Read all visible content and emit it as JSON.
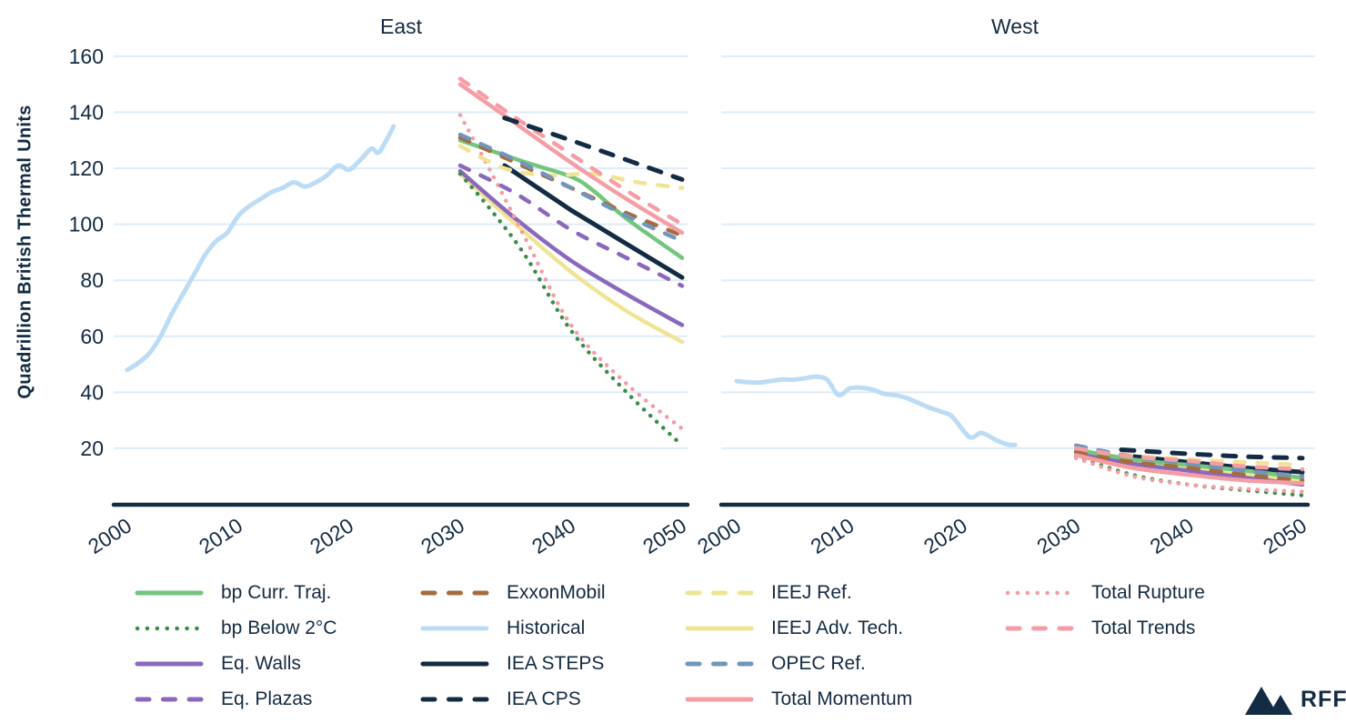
{
  "branding": {
    "logo_text": "RFF",
    "logo_color": "#132B43"
  },
  "chart_data": {
    "type": "line",
    "ylabel": "Quadrillion British Thermal Units",
    "xlabel": "",
    "ylim": [
      0,
      165
    ],
    "yticks": [
      20,
      40,
      60,
      80,
      100,
      120,
      140,
      160
    ],
    "xticks": [
      2000,
      2010,
      2020,
      2030,
      2040,
      2050
    ],
    "grid": "horizontal",
    "grid_color": "#DEEBF7",
    "axis_color": "#132B43",
    "legend_position": "bottom",
    "series": [
      {
        "name": "bp Curr. Traj.",
        "color": "#74C57E",
        "style": "solid"
      },
      {
        "name": "bp Below 2°C",
        "color": "#3B8C49",
        "style": "dotted"
      },
      {
        "name": "Eq. Walls",
        "color": "#8A68BD",
        "style": "solid"
      },
      {
        "name": "Eq. Plazas",
        "color": "#8A68BD",
        "style": "dashed"
      },
      {
        "name": "ExxonMobil",
        "color": "#A66B3F",
        "style": "dashed"
      },
      {
        "name": "Historical",
        "color": "#BCDCF5",
        "style": "solid"
      },
      {
        "name": "IEA STEPS",
        "color": "#132B43",
        "style": "solid"
      },
      {
        "name": "IEA CPS",
        "color": "#132B43",
        "style": "dashed"
      },
      {
        "name": "IEEJ Ref.",
        "color": "#F0E494",
        "style": "dashed"
      },
      {
        "name": "IEEJ Adv. Tech.",
        "color": "#F0E494",
        "style": "solid"
      },
      {
        "name": "OPEC Ref.",
        "color": "#7195BC",
        "style": "dashed"
      },
      {
        "name": "Total Momentum",
        "color": "#F59DA5",
        "style": "solid"
      },
      {
        "name": "Total Rupture",
        "color": "#F59DA5",
        "style": "dotted"
      },
      {
        "name": "Total Trends",
        "color": "#F59DA5",
        "style": "dashed"
      }
    ],
    "panels": [
      {
        "title": "East",
        "x_domain": [
          2000,
          2050
        ],
        "data": {
          "Historical": [
            [
              2000,
              48
            ],
            [
              2001,
              50.5
            ],
            [
              2002,
              54
            ],
            [
              2003,
              60
            ],
            [
              2004,
              68
            ],
            [
              2005,
              75
            ],
            [
              2006,
              82
            ],
            [
              2007,
              89
            ],
            [
              2008,
              94
            ],
            [
              2009,
              97
            ],
            [
              2010,
              103
            ],
            [
              2011,
              106.5
            ],
            [
              2012,
              109
            ],
            [
              2013,
              111.5
            ],
            [
              2014,
              113
            ],
            [
              2015,
              115
            ],
            [
              2016,
              113.5
            ],
            [
              2017,
              115
            ],
            [
              2018,
              117.5
            ],
            [
              2019,
              121
            ],
            [
              2020,
              119.5
            ],
            [
              2021,
              123
            ],
            [
              2022,
              127
            ],
            [
              2022.6,
              125.5
            ],
            [
              2023.2,
              129
            ],
            [
              2024,
              135
            ]
          ],
          "bp Curr. Traj.": [
            [
              2030,
              130
            ],
            [
              2033,
              126
            ],
            [
              2036,
              122
            ],
            [
              2040,
              117
            ],
            [
              2042,
              112
            ],
            [
              2045,
              102
            ],
            [
              2050,
              88
            ]
          ],
          "bp Below 2°C": [
            [
              2030,
              118
            ],
            [
              2033,
              104
            ],
            [
              2036,
              88
            ],
            [
              2040,
              62
            ],
            [
              2045,
              40
            ],
            [
              2050,
              21
            ]
          ],
          "Eq. Walls": [
            [
              2030,
              119
            ],
            [
              2035,
              102
            ],
            [
              2040,
              87
            ],
            [
              2045,
              75
            ],
            [
              2050,
              64
            ]
          ],
          "Eq. Plazas": [
            [
              2030,
              121
            ],
            [
              2035,
              111
            ],
            [
              2040,
              98
            ],
            [
              2045,
              88
            ],
            [
              2050,
              78
            ]
          ],
          "ExxonMobil": [
            [
              2030,
              131
            ],
            [
              2035,
              122
            ],
            [
              2040,
              113
            ],
            [
              2045,
              104
            ],
            [
              2050,
              96
            ]
          ],
          "IEA STEPS": [
            [
              2034,
              121
            ],
            [
              2040,
              105
            ],
            [
              2045,
              93
            ],
            [
              2050,
              81
            ]
          ],
          "IEA CPS": [
            [
              2034,
              138
            ],
            [
              2040,
              130
            ],
            [
              2045,
              123
            ],
            [
              2050,
              116
            ]
          ],
          "IEEJ Ref.": [
            [
              2030,
              128
            ],
            [
              2034,
              120
            ],
            [
              2038,
              117.5
            ],
            [
              2042,
              118
            ],
            [
              2046,
              115
            ],
            [
              2050,
              113
            ]
          ],
          "IEEJ Adv. Tech.": [
            [
              2030,
              118
            ],
            [
              2035,
              100
            ],
            [
              2040,
              83
            ],
            [
              2045,
              69
            ],
            [
              2050,
              58
            ]
          ],
          "OPEC Ref.": [
            [
              2030,
              132
            ],
            [
              2035,
              123
            ],
            [
              2040,
              113
            ],
            [
              2045,
              103
            ],
            [
              2050,
              94
            ]
          ],
          "Total Momentum": [
            [
              2030,
              150
            ],
            [
              2035,
              136
            ],
            [
              2040,
              122
            ],
            [
              2045,
              109
            ],
            [
              2050,
              97
            ]
          ],
          "Total Rupture": [
            [
              2030,
              139
            ],
            [
              2033,
              117
            ],
            [
              2036,
              94
            ],
            [
              2040,
              64
            ],
            [
              2045,
              43
            ],
            [
              2050,
              27
            ]
          ],
          "Total Trends": [
            [
              2030,
              152
            ],
            [
              2035,
              138
            ],
            [
              2040,
              125
            ],
            [
              2045,
              112
            ],
            [
              2050,
              100
            ]
          ]
        }
      },
      {
        "title": "West",
        "x_domain": [
          2000,
          2050
        ],
        "data": {
          "Historical": [
            [
              2000,
              44
            ],
            [
              2001,
              43.6
            ],
            [
              2002,
              43.5
            ],
            [
              2003,
              44
            ],
            [
              2004,
              44.6
            ],
            [
              2005,
              44.5
            ],
            [
              2006,
              45
            ],
            [
              2007,
              45.6
            ],
            [
              2008,
              44.5
            ],
            [
              2009,
              39
            ],
            [
              2010,
              41.4
            ],
            [
              2011,
              41.6
            ],
            [
              2012,
              41
            ],
            [
              2013,
              39.5
            ],
            [
              2014,
              39
            ],
            [
              2015,
              38
            ],
            [
              2016,
              36.3
            ],
            [
              2017,
              34.6
            ],
            [
              2018,
              33.2
            ],
            [
              2019,
              31.5
            ],
            [
              2020,
              26.5
            ],
            [
              2020.7,
              23.8
            ],
            [
              2021.5,
              25.4
            ],
            [
              2022,
              25
            ],
            [
              2023,
              22.8
            ],
            [
              2024,
              21.3
            ],
            [
              2024.6,
              21.2
            ]
          ],
          "bp Curr. Traj.": [
            [
              2030,
              19.5
            ],
            [
              2035,
              16
            ],
            [
              2040,
              14
            ],
            [
              2045,
              12
            ],
            [
              2050,
              9.5
            ]
          ],
          "bp Below 2°C": [
            [
              2030,
              17
            ],
            [
              2035,
              10.5
            ],
            [
              2040,
              7
            ],
            [
              2045,
              5
            ],
            [
              2050,
              3.2
            ]
          ],
          "Eq. Walls": [
            [
              2030,
              18.5
            ],
            [
              2035,
              14.5
            ],
            [
              2040,
              12
            ],
            [
              2045,
              9.5
            ],
            [
              2050,
              7
            ]
          ],
          "Eq. Plazas": [
            [
              2030,
              19
            ],
            [
              2035,
              16
            ],
            [
              2040,
              14
            ],
            [
              2045,
              12.5
            ],
            [
              2050,
              11
            ]
          ],
          "ExxonMobil": [
            [
              2030,
              18.5
            ],
            [
              2035,
              15
            ],
            [
              2040,
              13
            ],
            [
              2045,
              10.5
            ],
            [
              2050,
              8.5
            ]
          ],
          "IEA STEPS": [
            [
              2034,
              17.5
            ],
            [
              2040,
              15
            ],
            [
              2045,
              13
            ],
            [
              2050,
              11.5
            ]
          ],
          "IEA CPS": [
            [
              2034,
              19.5
            ],
            [
              2040,
              18
            ],
            [
              2045,
              17
            ],
            [
              2050,
              16.5
            ]
          ],
          "IEEJ Ref.": [
            [
              2030,
              20
            ],
            [
              2035,
              17.5
            ],
            [
              2040,
              16
            ],
            [
              2045,
              15
            ],
            [
              2050,
              14
            ]
          ],
          "IEEJ Adv. Tech.": [
            [
              2030,
              19.5
            ],
            [
              2035,
              15.5
            ],
            [
              2040,
              13
            ],
            [
              2045,
              10.5
            ],
            [
              2050,
              8
            ]
          ],
          "OPEC Ref.": [
            [
              2030,
              21
            ],
            [
              2035,
              17
            ],
            [
              2040,
              14.5
            ],
            [
              2045,
              12
            ],
            [
              2050,
              10
            ]
          ],
          "Total Momentum": [
            [
              2030,
              17.5
            ],
            [
              2035,
              13
            ],
            [
              2040,
              10.5
            ],
            [
              2045,
              8.5
            ],
            [
              2050,
              7.5
            ]
          ],
          "Total Rupture": [
            [
              2030,
              16.5
            ],
            [
              2035,
              10
            ],
            [
              2040,
              7
            ],
            [
              2045,
              5.5
            ],
            [
              2050,
              4.5
            ]
          ],
          "Total Trends": [
            [
              2030,
              20
            ],
            [
              2035,
              17
            ],
            [
              2040,
              15.5
            ],
            [
              2045,
              13.5
            ],
            [
              2050,
              12.5
            ]
          ]
        }
      }
    ]
  },
  "legend": {
    "columns": [
      [
        "bp Curr. Traj.",
        "bp Below 2°C",
        "Eq. Walls",
        "Eq. Plazas"
      ],
      [
        "ExxonMobil",
        "Historical",
        "IEA STEPS",
        "IEA CPS"
      ],
      [
        "IEEJ Ref.",
        "IEEJ Adv. Tech.",
        "OPEC Ref.",
        "Total Momentum"
      ],
      [
        "Total Rupture",
        "Total Trends"
      ]
    ]
  }
}
